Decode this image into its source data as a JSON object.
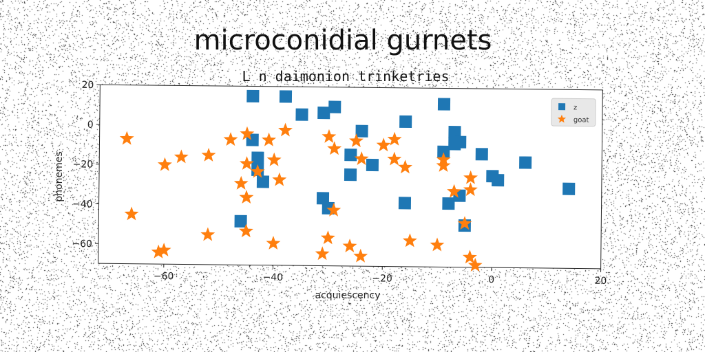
{
  "chart_data": {
    "type": "scatter",
    "title": "microconidial gurnets",
    "subtitle": "L n daimonion trinketries",
    "xlabel": "acquiescency",
    "ylabel": "phonemes",
    "xlim": [
      -72,
      20
    ],
    "ylim": [
      -70,
      20
    ],
    "xticks": [
      -60,
      -40,
      -20,
      0,
      20
    ],
    "yticks": [
      20,
      0,
      -20,
      -40,
      -60
    ],
    "grid": false,
    "legend_position": "top-right",
    "series": [
      {
        "name": "z",
        "marker": "square",
        "color": "#1f77b4",
        "points": [
          [
            -44,
            15
          ],
          [
            -38,
            15
          ],
          [
            -35,
            6
          ],
          [
            -31,
            7
          ],
          [
            -29,
            10
          ],
          [
            -24,
            -2
          ],
          [
            -16,
            3
          ],
          [
            -9,
            12
          ],
          [
            -7,
            -2
          ],
          [
            -6,
            -7
          ],
          [
            -9,
            -12
          ],
          [
            -7,
            -8
          ],
          [
            -2,
            -13
          ],
          [
            0,
            -24
          ],
          [
            1,
            -26
          ],
          [
            6,
            -17
          ],
          [
            14,
            -30
          ],
          [
            -26,
            -14
          ],
          [
            -22,
            -19
          ],
          [
            -26,
            -24
          ],
          [
            -44,
            -7
          ],
          [
            -43,
            -16
          ],
          [
            -43,
            -22
          ],
          [
            -42,
            -28
          ],
          [
            -31,
            -36
          ],
          [
            -30,
            -41
          ],
          [
            -16,
            -38
          ],
          [
            -8,
            -38
          ],
          [
            -6,
            -34
          ],
          [
            -5,
            -49
          ],
          [
            -46,
            -48
          ]
        ]
      },
      {
        "name": "goat",
        "marker": "star",
        "color": "#ff7f0e",
        "points": [
          [
            -67,
            -7
          ],
          [
            -60,
            -20
          ],
          [
            -57,
            -16
          ],
          [
            -52,
            -15
          ],
          [
            -48,
            -7
          ],
          [
            -45,
            -4
          ],
          [
            -41,
            -7
          ],
          [
            -38,
            -2
          ],
          [
            -40,
            -17
          ],
          [
            -39,
            -27
          ],
          [
            -45,
            -19
          ],
          [
            -43,
            -23
          ],
          [
            -46,
            -29
          ],
          [
            -45,
            -36
          ],
          [
            -30,
            -5
          ],
          [
            -29,
            -11
          ],
          [
            -25,
            -7
          ],
          [
            -24,
            -16
          ],
          [
            -20,
            -9
          ],
          [
            -18,
            -6
          ],
          [
            -18,
            -16
          ],
          [
            -16,
            -20
          ],
          [
            -9,
            -16
          ],
          [
            -9,
            -19
          ],
          [
            -7,
            -32
          ],
          [
            -4,
            -25
          ],
          [
            -4,
            -31
          ],
          [
            -5,
            -48
          ],
          [
            -66,
            -45
          ],
          [
            -52,
            -55
          ],
          [
            -45,
            -53
          ],
          [
            -40,
            -59
          ],
          [
            -30,
            -56
          ],
          [
            -29,
            -42
          ],
          [
            -26,
            -60
          ],
          [
            -24,
            -65
          ],
          [
            -31,
            -64
          ],
          [
            -15,
            -57
          ],
          [
            -10,
            -59
          ],
          [
            -4,
            -65
          ],
          [
            -3,
            -69
          ],
          [
            -61,
            -64
          ],
          [
            -60,
            -63
          ]
        ]
      }
    ]
  }
}
